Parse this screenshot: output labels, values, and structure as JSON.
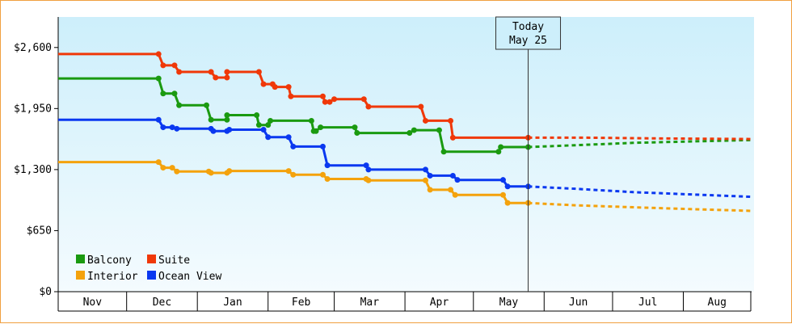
{
  "chart_data": {
    "type": "line",
    "step": true,
    "title": "",
    "xlabel": "",
    "ylabel": "",
    "ylim": [
      0,
      2925
    ],
    "yticks": [
      0,
      650,
      1300,
      1950,
      2600
    ],
    "ytick_labels": [
      "$0",
      "$650",
      "$1,300",
      "$1,950",
      "$2,600"
    ],
    "x_range": [
      "2023-11-01",
      "2024-08-31"
    ],
    "months": [
      "Nov",
      "Dec",
      "Jan",
      "Feb",
      "Mar",
      "Apr",
      "May",
      "Jun",
      "Jul",
      "Aug"
    ],
    "grid": false,
    "background_gradient": [
      "#cdeffb",
      "#f4fbfe"
    ],
    "legend_position": "bottom-left",
    "today": {
      "line1": "Today",
      "line2": "May 25",
      "date": "2024-05-25"
    },
    "series": [
      {
        "name": "Balcony",
        "color": "#1a9a10",
        "points": [
          [
            "2023-11-01",
            2270
          ],
          [
            "2023-12-15",
            2270
          ],
          [
            "2023-12-17",
            2110
          ],
          [
            "2023-12-22",
            2110
          ],
          [
            "2023-12-24",
            1985
          ],
          [
            "2024-01-05",
            1985
          ],
          [
            "2024-01-07",
            1830
          ],
          [
            "2024-01-14",
            1830
          ],
          [
            "2024-01-14",
            1880
          ],
          [
            "2024-01-27",
            1880
          ],
          [
            "2024-01-28",
            1775
          ],
          [
            "2024-02-01",
            1775
          ],
          [
            "2024-02-02",
            1820
          ],
          [
            "2024-02-20",
            1820
          ],
          [
            "2024-02-21",
            1710
          ],
          [
            "2024-02-22",
            1710
          ],
          [
            "2024-02-24",
            1750
          ],
          [
            "2024-03-10",
            1750
          ],
          [
            "2024-03-11",
            1690
          ],
          [
            "2024-04-03",
            1690
          ],
          [
            "2024-04-05",
            1720
          ],
          [
            "2024-04-16",
            1720
          ],
          [
            "2024-04-18",
            1490
          ],
          [
            "2024-05-12",
            1490
          ],
          [
            "2024-05-13",
            1540
          ],
          [
            "2024-05-25",
            1540
          ]
        ],
        "forecast": [
          [
            "2024-05-25",
            1540
          ],
          [
            "2024-06-15",
            1560
          ],
          [
            "2024-07-10",
            1585
          ],
          [
            "2024-08-05",
            1600
          ],
          [
            "2024-08-31",
            1615
          ]
        ]
      },
      {
        "name": "Suite",
        "color": "#f03808",
        "points": [
          [
            "2023-11-01",
            2530
          ],
          [
            "2023-12-15",
            2530
          ],
          [
            "2023-12-17",
            2410
          ],
          [
            "2023-12-22",
            2410
          ],
          [
            "2023-12-24",
            2340
          ],
          [
            "2024-01-07",
            2340
          ],
          [
            "2024-01-09",
            2280
          ],
          [
            "2024-01-14",
            2280
          ],
          [
            "2024-01-14",
            2340
          ],
          [
            "2024-01-28",
            2340
          ],
          [
            "2024-01-30",
            2210
          ],
          [
            "2024-02-03",
            2210
          ],
          [
            "2024-02-04",
            2180
          ],
          [
            "2024-02-10",
            2180
          ],
          [
            "2024-02-11",
            2080
          ],
          [
            "2024-02-25",
            2080
          ],
          [
            "2024-02-26",
            2020
          ],
          [
            "2024-02-28",
            2020
          ],
          [
            "2024-03-01",
            2050
          ],
          [
            "2024-03-14",
            2050
          ],
          [
            "2024-03-16",
            1970
          ],
          [
            "2024-04-08",
            1970
          ],
          [
            "2024-04-10",
            1820
          ],
          [
            "2024-04-21",
            1820
          ],
          [
            "2024-04-22",
            1640
          ],
          [
            "2024-05-25",
            1640
          ]
        ],
        "forecast": [
          [
            "2024-05-25",
            1640
          ],
          [
            "2024-06-20",
            1640
          ],
          [
            "2024-07-20",
            1632
          ],
          [
            "2024-08-31",
            1625
          ]
        ]
      },
      {
        "name": "Interior",
        "color": "#f4a20c",
        "points": [
          [
            "2023-11-01",
            1380
          ],
          [
            "2023-12-15",
            1380
          ],
          [
            "2023-12-17",
            1320
          ],
          [
            "2023-12-21",
            1320
          ],
          [
            "2023-12-23",
            1280
          ],
          [
            "2024-01-06",
            1280
          ],
          [
            "2024-01-07",
            1265
          ],
          [
            "2024-01-14",
            1265
          ],
          [
            "2024-01-15",
            1285
          ],
          [
            "2024-02-10",
            1285
          ],
          [
            "2024-02-12",
            1245
          ],
          [
            "2024-02-25",
            1245
          ],
          [
            "2024-02-27",
            1200
          ],
          [
            "2024-03-15",
            1200
          ],
          [
            "2024-03-16",
            1185
          ],
          [
            "2024-04-10",
            1185
          ],
          [
            "2024-04-12",
            1085
          ],
          [
            "2024-04-21",
            1085
          ],
          [
            "2024-04-23",
            1030
          ],
          [
            "2024-05-14",
            1030
          ],
          [
            "2024-05-16",
            945
          ],
          [
            "2024-05-25",
            945
          ]
        ],
        "forecast": [
          [
            "2024-05-25",
            945
          ],
          [
            "2024-06-15",
            920
          ],
          [
            "2024-07-15",
            895
          ],
          [
            "2024-08-10",
            875
          ],
          [
            "2024-08-31",
            860
          ]
        ]
      },
      {
        "name": "Ocean View",
        "color": "#0a38f0",
        "points": [
          [
            "2023-11-01",
            1830
          ],
          [
            "2023-12-15",
            1830
          ],
          [
            "2023-12-17",
            1750
          ],
          [
            "2023-12-21",
            1750
          ],
          [
            "2023-12-23",
            1735
          ],
          [
            "2024-01-07",
            1735
          ],
          [
            "2024-01-08",
            1710
          ],
          [
            "2024-01-14",
            1710
          ],
          [
            "2024-01-15",
            1725
          ],
          [
            "2024-01-30",
            1725
          ],
          [
            "2024-02-01",
            1645
          ],
          [
            "2024-02-10",
            1645
          ],
          [
            "2024-02-12",
            1545
          ],
          [
            "2024-02-25",
            1545
          ],
          [
            "2024-02-27",
            1345
          ],
          [
            "2024-03-15",
            1345
          ],
          [
            "2024-03-16",
            1300
          ],
          [
            "2024-04-10",
            1300
          ],
          [
            "2024-04-12",
            1235
          ],
          [
            "2024-04-22",
            1235
          ],
          [
            "2024-04-24",
            1190
          ],
          [
            "2024-05-14",
            1190
          ],
          [
            "2024-05-16",
            1120
          ],
          [
            "2024-05-25",
            1120
          ]
        ],
        "forecast": [
          [
            "2024-05-25",
            1120
          ],
          [
            "2024-06-15",
            1095
          ],
          [
            "2024-07-10",
            1060
          ],
          [
            "2024-08-05",
            1035
          ],
          [
            "2024-08-31",
            1010
          ]
        ]
      }
    ],
    "legend_order": [
      "Balcony",
      "Suite",
      "Interior",
      "Ocean View"
    ]
  }
}
